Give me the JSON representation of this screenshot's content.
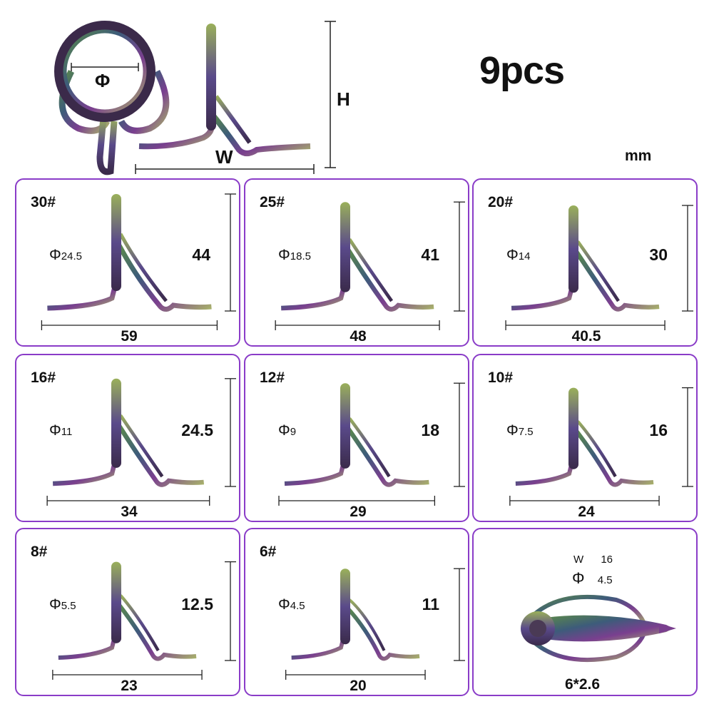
{
  "header": {
    "title": "9pcs",
    "unit": "mm",
    "diameter_symbol": "Φ",
    "height_label": "H",
    "width_label": "W"
  },
  "guides": [
    {
      "size": "30#",
      "diameter": "24.5",
      "height": "44",
      "width": "59"
    },
    {
      "size": "25#",
      "diameter": "18.5",
      "height": "41",
      "width": "48"
    },
    {
      "size": "20#",
      "diameter": "14",
      "height": "30",
      "width": "40.5"
    },
    {
      "size": "16#",
      "diameter": "11",
      "height": "24.5",
      "width": "34"
    },
    {
      "size": "12#",
      "diameter": "9",
      "height": "18",
      "width": "29"
    },
    {
      "size": "10#",
      "diameter": "7.5",
      "height": "16",
      "width": "24"
    },
    {
      "size": "8#",
      "diameter": "5.5",
      "height": "12.5",
      "width": "23"
    },
    {
      "size": "6#",
      "diameter": "4.5",
      "height": "11",
      "width": "20"
    }
  ],
  "tip_top": {
    "w_label": "W",
    "w_value": "16",
    "phi_symbol": "Φ",
    "phi_value": "4.5",
    "size": "6*2.6"
  },
  "colors": {
    "card_border": "#8a3cc8",
    "metal_dark": "#3b2a4a",
    "metal_purple": "#7a3f8f",
    "metal_green": "#6f9b5a"
  }
}
